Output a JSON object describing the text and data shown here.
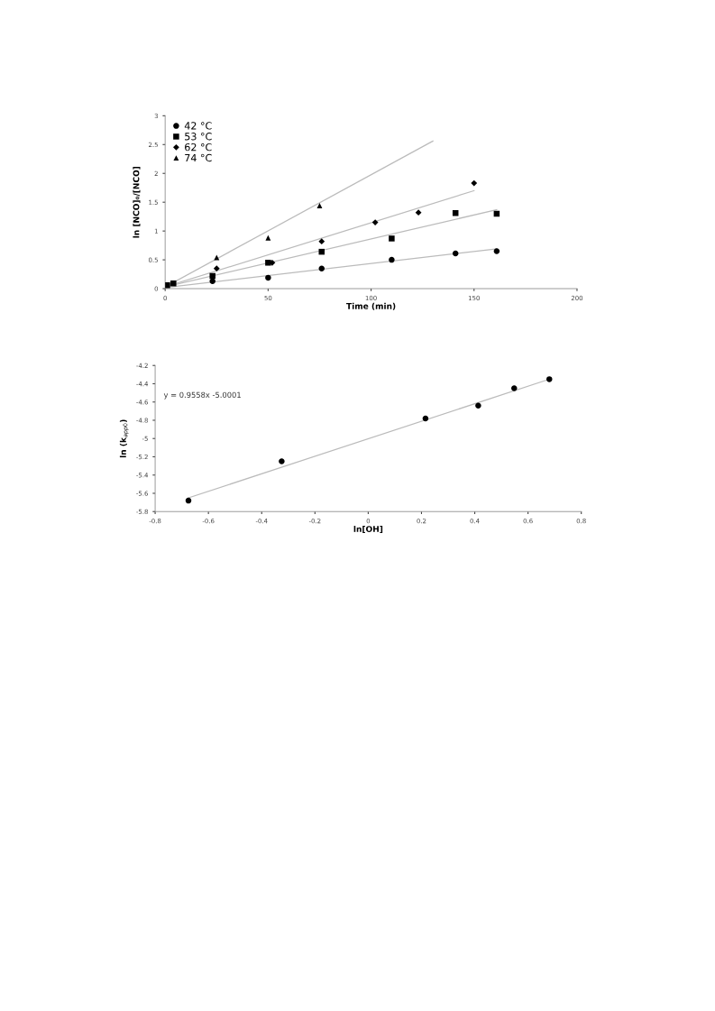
{
  "chart_data": [
    {
      "type": "scatter",
      "xlabel": "Time (min)",
      "ylabel": "ln [NCO]₀/[NCO]",
      "xlim": [
        0,
        200
      ],
      "xticks": [
        0,
        50,
        100,
        150,
        200
      ],
      "ylim": [
        0,
        3
      ],
      "yticks": [
        0,
        0.5,
        1,
        1.5,
        2,
        2.5,
        3
      ],
      "grid": false,
      "legend": "top left",
      "series": [
        {
          "name": "42 °C",
          "marker": "circle",
          "color": "#000000",
          "x": [
            23,
            50,
            76,
            110,
            141,
            161
          ],
          "values": [
            0.13,
            0.19,
            0.35,
            0.5,
            0.61,
            0.65
          ]
        },
        {
          "name": "53 °C",
          "marker": "square",
          "color": "#000000",
          "x": [
            1,
            4,
            23,
            50,
            76,
            110,
            141,
            161
          ],
          "values": [
            0.06,
            0.09,
            0.22,
            0.45,
            0.64,
            0.87,
            1.31,
            1.3
          ]
        },
        {
          "name": "62 °C",
          "marker": "diamond",
          "color": "#000000",
          "x": [
            25,
            52,
            76,
            102,
            123,
            150
          ],
          "values": [
            0.35,
            0.45,
            0.82,
            1.15,
            1.32,
            1.83
          ]
        },
        {
          "name": "74 °C",
          "marker": "triangle",
          "color": "#000000",
          "x": [
            25,
            50,
            75
          ],
          "values": [
            0.54,
            0.88,
            1.44
          ]
        },
        {
          "type": "line",
          "marker": "none",
          "color": "#bbbbbb",
          "x": [
            0,
            161
          ],
          "values": [
            0.02,
            0.69
          ]
        },
        {
          "type": "line",
          "marker": "none",
          "color": "#bbbbbb",
          "x": [
            0,
            161
          ],
          "values": [
            0.03,
            1.37
          ]
        },
        {
          "type": "line",
          "marker": "none",
          "color": "#bbbbbb",
          "x": [
            0,
            150
          ],
          "values": [
            0.03,
            1.7
          ]
        },
        {
          "type": "line",
          "marker": "none",
          "color": "#bbbbbb",
          "x": [
            0,
            130
          ],
          "values": [
            0.03,
            2.56
          ]
        }
      ]
    },
    {
      "type": "scatter",
      "xlabel": "ln[OH]",
      "ylabel": "ln (k$_{app0}$)",
      "xlim": [
        -0.8,
        0.8
      ],
      "xticks": [
        -0.8,
        -0.6,
        -0.4,
        -0.2,
        0,
        0.2,
        0.4,
        0.6,
        0.8
      ],
      "ylim": [
        -5.8,
        -4.2
      ],
      "yticks": [
        -5.8,
        -5.6,
        -5.4,
        -5.2,
        -5,
        -4.8,
        -4.6,
        -4.4,
        -4.2
      ],
      "grid": false,
      "legend": false,
      "annotations": [
        "y = 0.9558x -5.0001"
      ],
      "series": [
        {
          "marker": "circle",
          "color": "#000000",
          "x": [
            -0.675,
            -0.325,
            0.215,
            0.413,
            0.548,
            0.68
          ],
          "values": [
            -5.68,
            -5.25,
            -4.78,
            -4.64,
            -4.45,
            -4.35
          ]
        },
        {
          "type": "line",
          "marker": "none",
          "color": "#bbbbbb",
          "x": [
            -0.675,
            0.68
          ],
          "values": [
            -5.65,
            -4.35
          ]
        }
      ]
    }
  ]
}
